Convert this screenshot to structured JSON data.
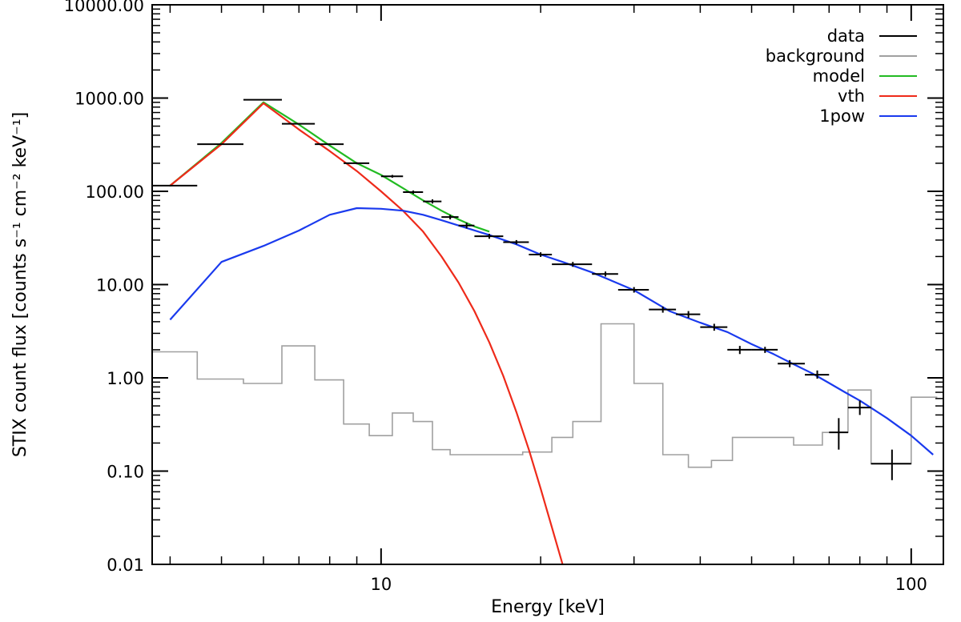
{
  "chart_data": {
    "type": "line",
    "xlabel": "Energy [keV]",
    "ylabel": "STIX count flux [counts s⁻¹ cm⁻² keV⁻¹]",
    "xscale": "log",
    "yscale": "log",
    "xlim": [
      3.7,
      115
    ],
    "ylim": [
      0.01,
      10000
    ],
    "x_ticks": [
      {
        "value": 10,
        "label": "10"
      },
      {
        "value": 100,
        "label": "100"
      }
    ],
    "y_ticks": [
      {
        "value": 10000,
        "label": "10000.00"
      },
      {
        "value": 1000,
        "label": "1000.00"
      },
      {
        "value": 100,
        "label": "100.00"
      },
      {
        "value": 10,
        "label": "10.00"
      },
      {
        "value": 1,
        "label": "1.00"
      },
      {
        "value": 0.1,
        "label": "0.10"
      },
      {
        "value": 0.01,
        "label": "0.01"
      }
    ],
    "grid": false,
    "legend_position": "top-right",
    "legend": [
      {
        "label": "data",
        "color": "#000000"
      },
      {
        "label": "background",
        "color": "#a0a0a0"
      },
      {
        "label": "model",
        "color": "#22bb22"
      },
      {
        "label": "vth",
        "color": "#ee2a1a"
      },
      {
        "label": "1pow",
        "color": "#1a3aee"
      }
    ],
    "data": [
      {
        "x": 4.0,
        "y": 115,
        "xlo": 3.7,
        "xhi": 4.5,
        "ylo": 113,
        "yhi": 117
      },
      {
        "x": 5.0,
        "y": 320,
        "xlo": 4.5,
        "xhi": 5.5,
        "ylo": 316,
        "yhi": 324
      },
      {
        "x": 6.0,
        "y": 960,
        "xlo": 5.5,
        "xhi": 6.5,
        "ylo": 950,
        "yhi": 970
      },
      {
        "x": 7.0,
        "y": 530,
        "xlo": 6.5,
        "xhi": 7.5,
        "ylo": 522,
        "yhi": 538
      },
      {
        "x": 8.0,
        "y": 320,
        "xlo": 7.5,
        "xhi": 8.5,
        "ylo": 314,
        "yhi": 326
      },
      {
        "x": 9.0,
        "y": 200,
        "xlo": 8.5,
        "xhi": 9.5,
        "ylo": 195,
        "yhi": 205
      },
      {
        "x": 10.5,
        "y": 145,
        "xlo": 10.0,
        "xhi": 11.0,
        "ylo": 140,
        "yhi": 150
      },
      {
        "x": 11.5,
        "y": 98,
        "xlo": 11.0,
        "xhi": 12.0,
        "ylo": 94,
        "yhi": 102
      },
      {
        "x": 12.5,
        "y": 78,
        "xlo": 12.0,
        "xhi": 13.0,
        "ylo": 74,
        "yhi": 82
      },
      {
        "x": 13.5,
        "y": 53,
        "xlo": 13.0,
        "xhi": 14.0,
        "ylo": 50,
        "yhi": 56
      },
      {
        "x": 14.5,
        "y": 43,
        "xlo": 14.0,
        "xhi": 15.0,
        "ylo": 40,
        "yhi": 46
      },
      {
        "x": 16.0,
        "y": 33,
        "xlo": 15.0,
        "xhi": 17.0,
        "ylo": 31,
        "yhi": 35
      },
      {
        "x": 18.0,
        "y": 28.5,
        "xlo": 17.0,
        "xhi": 19.0,
        "ylo": 27,
        "yhi": 30
      },
      {
        "x": 20.0,
        "y": 21,
        "xlo": 19.0,
        "xhi": 21.0,
        "ylo": 19.8,
        "yhi": 22.2
      },
      {
        "x": 23.0,
        "y": 16.5,
        "xlo": 21.0,
        "xhi": 25.0,
        "ylo": 15.5,
        "yhi": 17.5
      },
      {
        "x": 26.5,
        "y": 13,
        "xlo": 25.0,
        "xhi": 28.0,
        "ylo": 12.2,
        "yhi": 13.8
      },
      {
        "x": 30.0,
        "y": 8.8,
        "xlo": 28.0,
        "xhi": 32.0,
        "ylo": 8.2,
        "yhi": 9.4
      },
      {
        "x": 34.0,
        "y": 5.4,
        "xlo": 32.0,
        "xhi": 36.0,
        "ylo": 5.0,
        "yhi": 5.8
      },
      {
        "x": 38.0,
        "y": 4.8,
        "xlo": 36.0,
        "xhi": 40.0,
        "ylo": 4.4,
        "yhi": 5.2
      },
      {
        "x": 42.5,
        "y": 3.5,
        "xlo": 40.0,
        "xhi": 45.0,
        "ylo": 3.2,
        "yhi": 3.8
      },
      {
        "x": 47.5,
        "y": 2.0,
        "xlo": 45.0,
        "xhi": 50.0,
        "ylo": 1.8,
        "yhi": 2.2
      },
      {
        "x": 53.0,
        "y": 2.0,
        "xlo": 50.0,
        "xhi": 56.0,
        "ylo": 1.85,
        "yhi": 2.15
      },
      {
        "x": 59.0,
        "y": 1.42,
        "xlo": 56.0,
        "xhi": 63.0,
        "ylo": 1.3,
        "yhi": 1.55
      },
      {
        "x": 66.5,
        "y": 1.08,
        "xlo": 63.0,
        "xhi": 70.0,
        "ylo": 0.98,
        "yhi": 1.2
      },
      {
        "x": 73.0,
        "y": 0.26,
        "xlo": 70.0,
        "xhi": 76.0,
        "ylo": 0.17,
        "yhi": 0.37
      },
      {
        "x": 80.0,
        "y": 0.48,
        "xlo": 76.0,
        "xhi": 84.0,
        "ylo": 0.4,
        "yhi": 0.57
      },
      {
        "x": 92.0,
        "y": 0.12,
        "xlo": 84.0,
        "xhi": 100.0,
        "ylo": 0.08,
        "yhi": 0.17
      }
    ],
    "background": [
      [
        3.7,
        1.9
      ],
      [
        4.5,
        1.9
      ],
      [
        4.5,
        0.97
      ],
      [
        5.5,
        0.97
      ],
      [
        5.5,
        0.87
      ],
      [
        6.5,
        0.87
      ],
      [
        6.5,
        2.2
      ],
      [
        7.5,
        2.2
      ],
      [
        7.5,
        0.95
      ],
      [
        8.5,
        0.95
      ],
      [
        8.5,
        0.32
      ],
      [
        9.5,
        0.32
      ],
      [
        9.5,
        0.24
      ],
      [
        10.5,
        0.24
      ],
      [
        10.5,
        0.42
      ],
      [
        11.5,
        0.42
      ],
      [
        11.5,
        0.34
      ],
      [
        12.5,
        0.34
      ],
      [
        12.5,
        0.17
      ],
      [
        13.5,
        0.17
      ],
      [
        13.5,
        0.15
      ],
      [
        18.5,
        0.15
      ],
      [
        18.5,
        0.16
      ],
      [
        21.0,
        0.16
      ],
      [
        21.0,
        0.23
      ],
      [
        23.0,
        0.23
      ],
      [
        23.0,
        0.34
      ],
      [
        26.0,
        0.34
      ],
      [
        26.0,
        3.8
      ],
      [
        30.0,
        3.8
      ],
      [
        30.0,
        0.87
      ],
      [
        34.0,
        0.87
      ],
      [
        34.0,
        0.15
      ],
      [
        38.0,
        0.15
      ],
      [
        38.0,
        0.11
      ],
      [
        42.0,
        0.11
      ],
      [
        42.0,
        0.13
      ],
      [
        46.0,
        0.13
      ],
      [
        46.0,
        0.23
      ],
      [
        60.0,
        0.23
      ],
      [
        60.0,
        0.19
      ],
      [
        68.0,
        0.19
      ],
      [
        68.0,
        0.26
      ],
      [
        76.0,
        0.26
      ],
      [
        76.0,
        0.74
      ],
      [
        84.0,
        0.74
      ],
      [
        84.0,
        0.12
      ],
      [
        100.0,
        0.12
      ],
      [
        100.0,
        0.62
      ],
      [
        112.0,
        0.62
      ]
    ],
    "series": [
      {
        "name": "model",
        "color": "#22bb22",
        "points": [
          [
            4.0,
            115
          ],
          [
            5.0,
            330
          ],
          [
            6.0,
            900
          ],
          [
            7.0,
            520
          ],
          [
            8.0,
            310
          ],
          [
            9.0,
            200
          ],
          [
            10.0,
            150
          ],
          [
            11.0,
            108
          ],
          [
            12.0,
            80
          ],
          [
            13.0,
            62
          ],
          [
            14.0,
            50
          ],
          [
            15.0,
            42
          ],
          [
            16.0,
            37
          ]
        ]
      },
      {
        "name": "vth",
        "color": "#ee2a1a",
        "points": [
          [
            4.0,
            115
          ],
          [
            5.0,
            320
          ],
          [
            6.0,
            880
          ],
          [
            7.0,
            460
          ],
          [
            8.0,
            270
          ],
          [
            9.0,
            165
          ],
          [
            10.0,
            100
          ],
          [
            11.0,
            62
          ],
          [
            12.0,
            37
          ],
          [
            13.0,
            20
          ],
          [
            14.0,
            10.5
          ],
          [
            15.0,
            5.2
          ],
          [
            16.0,
            2.4
          ],
          [
            17.0,
            1.05
          ],
          [
            18.0,
            0.43
          ],
          [
            19.0,
            0.17
          ],
          [
            20.0,
            0.065
          ],
          [
            21.0,
            0.025
          ],
          [
            22.0,
            0.0095
          ]
        ]
      },
      {
        "name": "1pow",
        "color": "#1a3aee",
        "points": [
          [
            4.0,
            4.2
          ],
          [
            5.0,
            17.5
          ],
          [
            6.0,
            26
          ],
          [
            7.0,
            38
          ],
          [
            8.0,
            56
          ],
          [
            9.0,
            66
          ],
          [
            10.0,
            65
          ],
          [
            11.0,
            62
          ],
          [
            12.0,
            56
          ],
          [
            13.0,
            49
          ],
          [
            14.0,
            43
          ],
          [
            16.0,
            34
          ],
          [
            18.0,
            27
          ],
          [
            20.0,
            21
          ],
          [
            22.0,
            17.5
          ],
          [
            25.0,
            13.5
          ],
          [
            30.0,
            8.7
          ],
          [
            35.0,
            5.2
          ],
          [
            40.0,
            3.9
          ],
          [
            45.0,
            3.1
          ],
          [
            50.0,
            2.3
          ],
          [
            55.0,
            1.8
          ],
          [
            60.0,
            1.4
          ],
          [
            65.0,
            1.12
          ],
          [
            70.0,
            0.88
          ],
          [
            75.0,
            0.7
          ],
          [
            80.0,
            0.57
          ],
          [
            90.0,
            0.37
          ],
          [
            100.0,
            0.24
          ],
          [
            110.0,
            0.15
          ]
        ]
      }
    ]
  }
}
